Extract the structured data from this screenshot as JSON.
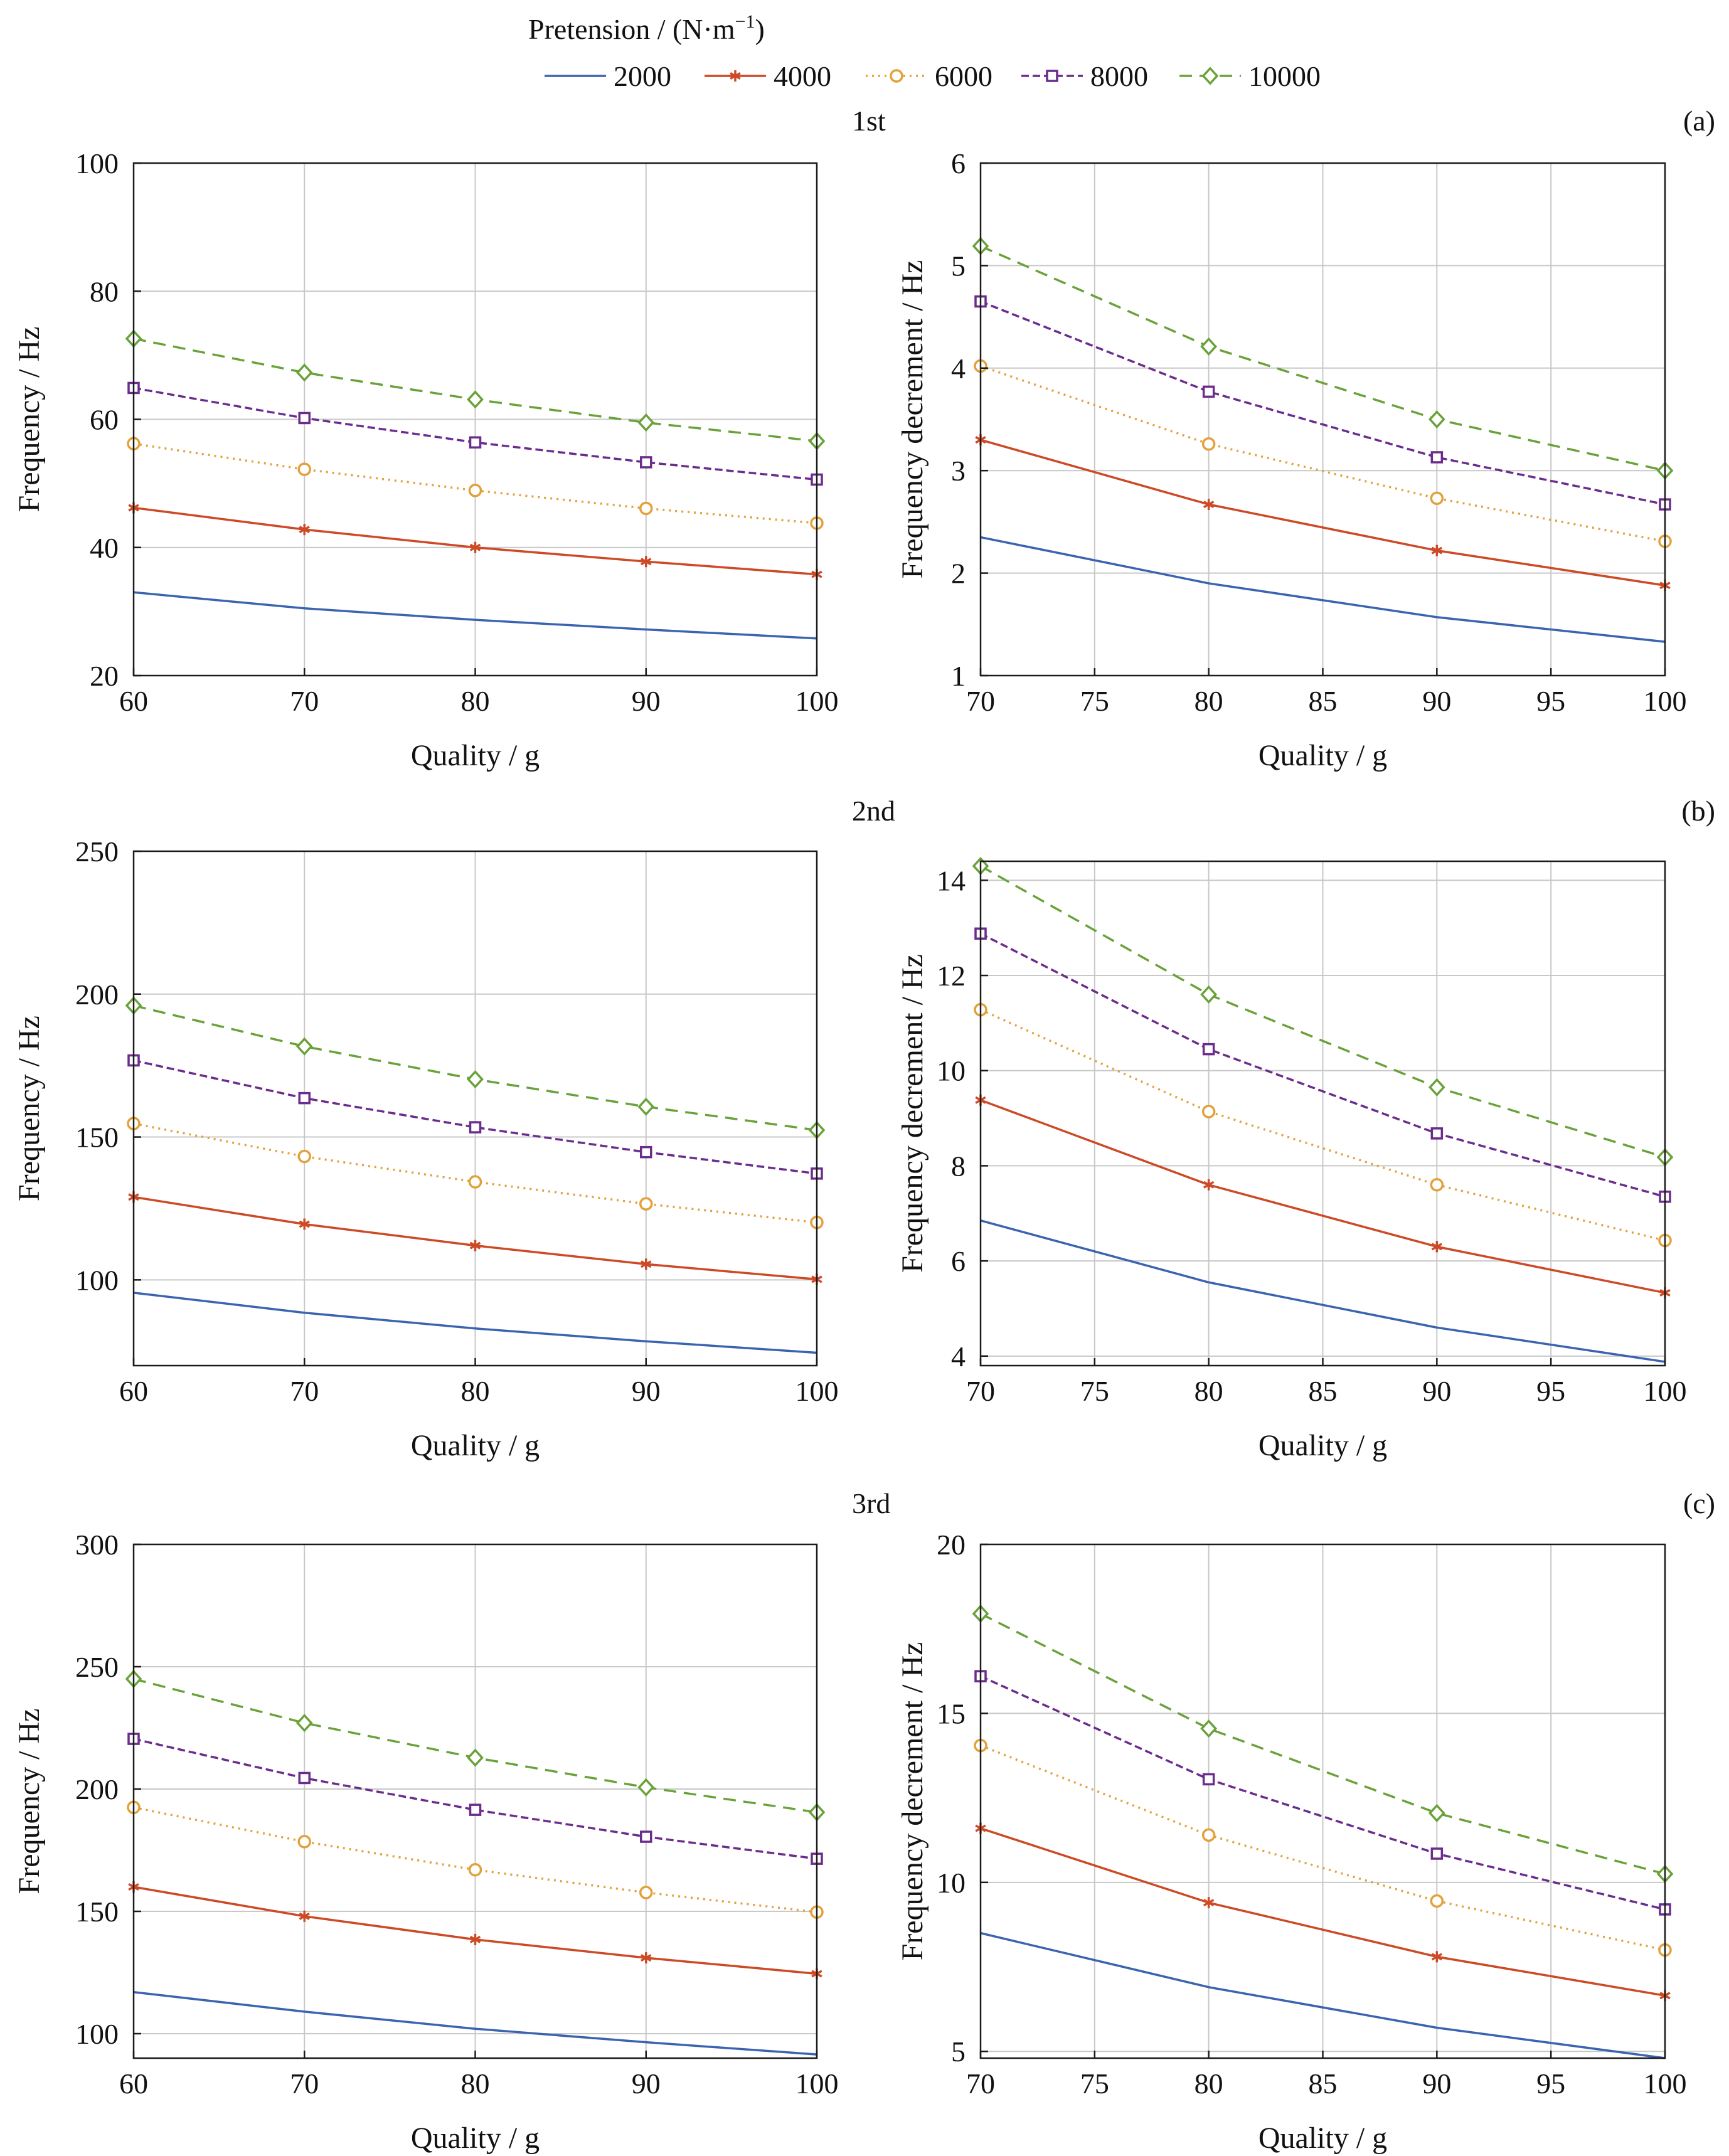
{
  "legend": {
    "title": "Pretension / (N·m",
    "title_sup": "−1",
    "title_close": ")",
    "entries": [
      "2000",
      "4000",
      "6000",
      "8000",
      "10000"
    ]
  },
  "series_style": [
    {
      "name": "2000",
      "color": "#3b64b0",
      "dash": "",
      "marker": "none"
    },
    {
      "name": "4000",
      "color": "#cd4a26",
      "dash": "",
      "marker": "asterisk"
    },
    {
      "name": "6000",
      "color": "#e2a13a",
      "dash": "3 7",
      "marker": "circle"
    },
    {
      "name": "8000",
      "color": "#6b2c8c",
      "dash": "12 6",
      "marker": "square"
    },
    {
      "name": "10000",
      "color": "#6aa23a",
      "dash": "20 12",
      "marker": "diamond"
    }
  ],
  "rows": [
    {
      "title": "1st",
      "tag": "(a)"
    },
    {
      "title": "2nd",
      "tag": "(b)"
    },
    {
      "title": "3rd",
      "tag": "(c)"
    }
  ],
  "chart_data": [
    {
      "id": "a-left",
      "type": "line",
      "xlabel": "Quality / g",
      "ylabel": "Frequency / Hz",
      "xlim": [
        60,
        100
      ],
      "ylim": [
        20,
        100
      ],
      "xticks": [
        60,
        70,
        80,
        90,
        100
      ],
      "yticks": [
        20,
        40,
        60,
        80,
        100
      ],
      "x": [
        60,
        70,
        80,
        90,
        100
      ],
      "series": [
        {
          "name": "2000",
          "values": [
            33,
            30.5,
            28.7,
            27.2,
            25.8
          ]
        },
        {
          "name": "4000",
          "values": [
            46.2,
            42.8,
            40,
            37.8,
            35.8
          ]
        },
        {
          "name": "6000",
          "values": [
            56.2,
            52.2,
            48.9,
            46.1,
            43.8
          ]
        },
        {
          "name": "8000",
          "values": [
            64.9,
            60.2,
            56.4,
            53.3,
            50.6
          ]
        },
        {
          "name": "10000",
          "values": [
            72.6,
            67.3,
            63.1,
            59.5,
            56.6
          ]
        }
      ]
    },
    {
      "id": "a-right",
      "type": "line",
      "xlabel": "Quality / g",
      "ylabel": "Frequency decrement / Hz",
      "xlim": [
        70,
        100
      ],
      "ylim": [
        1,
        6
      ],
      "xticks": [
        70,
        75,
        80,
        85,
        90,
        95,
        100
      ],
      "yticks": [
        1,
        2,
        3,
        4,
        5,
        6
      ],
      "x": [
        70,
        80,
        90,
        100
      ],
      "series": [
        {
          "name": "2000",
          "values": [
            2.35,
            1.9,
            1.57,
            1.33
          ]
        },
        {
          "name": "4000",
          "values": [
            3.3,
            2.67,
            2.22,
            1.88
          ]
        },
        {
          "name": "6000",
          "values": [
            4.02,
            3.26,
            2.73,
            2.31
          ]
        },
        {
          "name": "8000",
          "values": [
            4.65,
            3.77,
            3.13,
            2.67
          ]
        },
        {
          "name": "10000",
          "values": [
            5.19,
            4.21,
            3.5,
            3.0
          ]
        }
      ]
    },
    {
      "id": "b-left",
      "type": "line",
      "xlabel": "Quality / g",
      "ylabel": "Frequency / Hz",
      "xlim": [
        60,
        100
      ],
      "ylim": [
        70,
        250
      ],
      "xticks": [
        60,
        70,
        80,
        90,
        100
      ],
      "yticks": [
        100,
        150,
        200,
        250
      ],
      "x": [
        60,
        70,
        80,
        90,
        100
      ],
      "series": [
        {
          "name": "2000",
          "values": [
            95.5,
            88.5,
            83,
            78.5,
            74.5
          ]
        },
        {
          "name": "4000",
          "values": [
            129,
            119.5,
            112,
            105.5,
            100.2
          ]
        },
        {
          "name": "6000",
          "values": [
            154.7,
            143.2,
            134.3,
            126.6,
            120.1
          ]
        },
        {
          "name": "8000",
          "values": [
            176.8,
            163.6,
            153.4,
            144.7,
            137.2
          ]
        },
        {
          "name": "10000",
          "values": [
            196,
            181.7,
            170.2,
            160.6,
            152.4
          ]
        }
      ]
    },
    {
      "id": "b-right",
      "type": "line",
      "xlabel": "Quality / g",
      "ylabel": "Frequency decrement / Hz",
      "xlim": [
        70,
        100
      ],
      "ylim": [
        3.8,
        14.4
      ],
      "xticks": [
        70,
        75,
        80,
        85,
        90,
        95,
        100
      ],
      "yticks": [
        4,
        6,
        8,
        10,
        12,
        14
      ],
      "x": [
        70,
        80,
        90,
        100
      ],
      "series": [
        {
          "name": "2000",
          "values": [
            6.85,
            5.55,
            4.6,
            3.88
          ]
        },
        {
          "name": "4000",
          "values": [
            9.38,
            7.6,
            6.3,
            5.33
          ]
        },
        {
          "name": "6000",
          "values": [
            11.28,
            9.14,
            7.6,
            6.43
          ]
        },
        {
          "name": "8000",
          "values": [
            12.88,
            10.45,
            8.68,
            7.35
          ]
        },
        {
          "name": "10000",
          "values": [
            14.3,
            11.6,
            9.65,
            8.18
          ]
        }
      ]
    },
    {
      "id": "c-left",
      "type": "line",
      "xlabel": "Quality / g",
      "ylabel": "Frequency / Hz",
      "xlim": [
        60,
        100
      ],
      "ylim": [
        90,
        300
      ],
      "xticks": [
        60,
        70,
        80,
        90,
        100
      ],
      "yticks": [
        100,
        150,
        200,
        250,
        300
      ],
      "x": [
        60,
        70,
        80,
        90,
        100
      ],
      "series": [
        {
          "name": "2000",
          "values": [
            117,
            109,
            102,
            96.5,
            91.5
          ]
        },
        {
          "name": "4000",
          "values": [
            160,
            148,
            138.5,
            131,
            124.5
          ]
        },
        {
          "name": "6000",
          "values": [
            192.5,
            178.5,
            167,
            157.7,
            149.7
          ]
        },
        {
          "name": "8000",
          "values": [
            220.5,
            204.5,
            191.5,
            180.5,
            171.5
          ]
        },
        {
          "name": "10000",
          "values": [
            245,
            227,
            212.8,
            200.7,
            190.5
          ]
        }
      ]
    },
    {
      "id": "c-right",
      "type": "line",
      "xlabel": "Quality / g",
      "ylabel": "Frequency decrement / Hz",
      "xlim": [
        70,
        100
      ],
      "ylim": [
        4.8,
        20
      ],
      "xticks": [
        70,
        75,
        80,
        85,
        90,
        95,
        100
      ],
      "yticks": [
        5,
        10,
        15,
        20
      ],
      "x": [
        70,
        80,
        90,
        100
      ],
      "series": [
        {
          "name": "2000",
          "values": [
            8.5,
            6.9,
            5.7,
            4.8
          ]
        },
        {
          "name": "4000",
          "values": [
            11.6,
            9.4,
            7.8,
            6.65
          ]
        },
        {
          "name": "6000",
          "values": [
            14.05,
            11.4,
            9.45,
            8.0
          ]
        },
        {
          "name": "8000",
          "values": [
            16.1,
            13.05,
            10.85,
            9.2
          ]
        },
        {
          "name": "10000",
          "values": [
            17.95,
            14.55,
            12.05,
            10.25
          ]
        }
      ]
    }
  ]
}
